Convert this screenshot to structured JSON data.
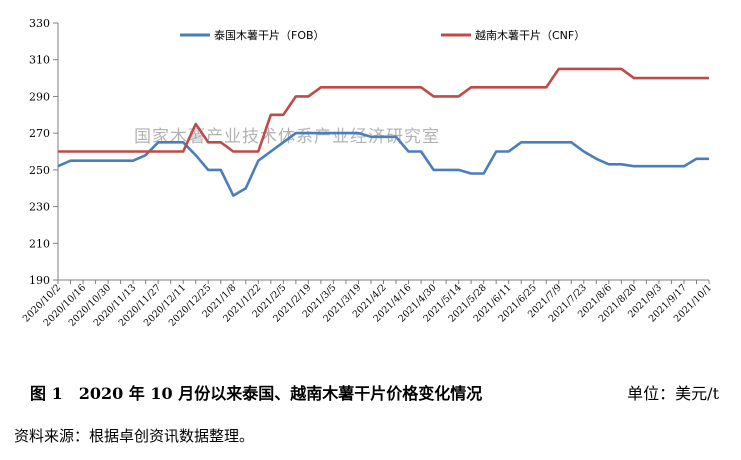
{
  "chart_data": {
    "type": "line",
    "title": "",
    "xlabel": "",
    "ylabel": "",
    "ylim": [
      190,
      330
    ],
    "yticks": [
      190,
      210,
      230,
      250,
      270,
      290,
      310,
      330
    ],
    "grid": false,
    "legend_position": "top",
    "x": [
      "2020/10/2",
      "2020/10/9",
      "2020/10/16",
      "2020/10/23",
      "2020/10/30",
      "2020/11/6",
      "2020/11/13",
      "2020/11/20",
      "2020/11/27",
      "2020/12/4",
      "2020/12/11",
      "2020/12/18",
      "2020/12/25",
      "2021/1/1",
      "2021/1/8",
      "2021/1/15",
      "2021/1/22",
      "2021/1/29",
      "2021/2/5",
      "2021/2/12",
      "2021/2/19",
      "2021/2/26",
      "2021/3/5",
      "2021/3/12",
      "2021/3/19",
      "2021/3/26",
      "2021/4/2",
      "2021/4/9",
      "2021/4/16",
      "2021/4/23",
      "2021/4/30",
      "2021/5/7",
      "2021/5/14",
      "2021/5/21",
      "2021/5/28",
      "2021/6/4",
      "2021/6/11",
      "2021/6/18",
      "2021/6/25",
      "2021/7/2",
      "2021/7/9",
      "2021/7/16",
      "2021/7/23",
      "2021/7/30",
      "2021/8/6",
      "2021/8/13",
      "2021/8/20",
      "2021/8/27",
      "2021/9/3",
      "2021/9/10",
      "2021/9/17",
      "2021/9/24",
      "2021/10/1"
    ],
    "tick_labels": [
      "2020/10/2",
      "2020/10/16",
      "2020/10/30",
      "2020/11/13",
      "2020/11/27",
      "2020/12/11",
      "2020/12/25",
      "2021/1/8",
      "2021/1/22",
      "2021/2/5",
      "2021/2/19",
      "2021/3/5",
      "2021/3/19",
      "2021/4/2",
      "2021/4/16",
      "2021/4/30",
      "2021/5/14",
      "2021/5/28",
      "2021/6/11",
      "2021/6/25",
      "2021/7/9",
      "2021/7/23",
      "2021/8/6",
      "2021/8/20",
      "2021/9/3",
      "2021/9/17",
      "2021/10/1"
    ],
    "series": [
      {
        "name": "泰国木薯干片（FOB）",
        "color": "#4a7ebb",
        "values": [
          252,
          255,
          255,
          255,
          255,
          255,
          255,
          258,
          265,
          265,
          265,
          258,
          250,
          250,
          236,
          240,
          255,
          260,
          265,
          270,
          270,
          270,
          270,
          270,
          270,
          268,
          268,
          268,
          260,
          260,
          250,
          250,
          250,
          248,
          248,
          260,
          260,
          265,
          265,
          265,
          265,
          265,
          260,
          256,
          253,
          253,
          252,
          252,
          252,
          252,
          252,
          256,
          256
        ]
      },
      {
        "name": "越南木薯干片（CNF）",
        "color": "#be4b48",
        "values": [
          260,
          260,
          260,
          260,
          260,
          260,
          260,
          260,
          260,
          260,
          260,
          275,
          265,
          265,
          260,
          260,
          260,
          280,
          280,
          290,
          290,
          295,
          295,
          295,
          295,
          295,
          295,
          295,
          295,
          295,
          290,
          290,
          290,
          295,
          295,
          295,
          295,
          295,
          295,
          295,
          305,
          305,
          305,
          305,
          305,
          305,
          300,
          300,
          300,
          300,
          300,
          300,
          300
        ]
      }
    ],
    "watermark": "国家木薯产业技术体系产业经济研究室"
  },
  "caption": "图 1　2020 年 10 月份以来泰国、越南木薯干片价格变化情况",
  "unit": "单位：美元/t",
  "source": "资料来源：根据卓创资讯数据整理。"
}
